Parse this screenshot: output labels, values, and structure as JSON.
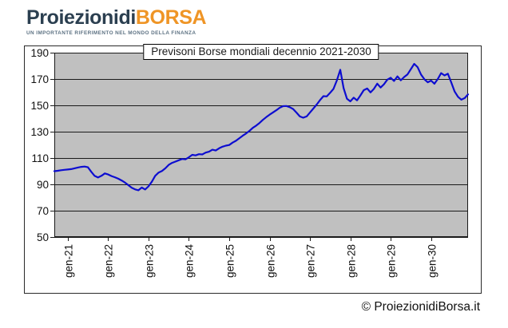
{
  "logo": {
    "brand_primary": "Proiezionidi",
    "brand_accent": "BORSA",
    "tagline": "UN IMPORTANTE RIFERIMENTO NEL MONDO DELLA FINANZA",
    "colors": {
      "primary": "#2b3f50",
      "accent": "#ef9526",
      "tagline": "#5d7283"
    }
  },
  "chart_data": {
    "type": "line",
    "title": "Previsoni Borse mondiali decennio 2021-2030",
    "xlabel": "",
    "ylabel": "",
    "ylim": [
      50,
      190
    ],
    "y_ticks": [
      190,
      170,
      150,
      130,
      110,
      90,
      70,
      50
    ],
    "x_tick_labels": [
      "gen-21",
      "gen-22",
      "gen-23",
      "gen-24",
      "gen-25",
      "gen-26",
      "gen-27",
      "gen-28",
      "gen-29",
      "gen-30"
    ],
    "x_tick_point_indices": [
      4,
      16,
      28,
      40,
      52,
      64,
      76,
      88,
      100,
      112
    ],
    "grid": true,
    "legend": "none",
    "colors": {
      "plot_background": "#c0c0c0",
      "line": "#0d0dd0",
      "grid": "#1a1a1a",
      "frame": "#2a2a2a"
    },
    "series": [
      {
        "values": [
          100,
          100.3,
          100.7,
          101,
          101.3,
          101.6,
          102.2,
          102.8,
          103.3,
          103.5,
          103,
          99.5,
          96.4,
          95.2,
          96.5,
          98.3,
          97.5,
          96.3,
          95.4,
          94.3,
          93,
          91.4,
          89.4,
          87.4,
          86.2,
          85.5,
          87.6,
          86.1,
          88.5,
          92,
          96.5,
          99,
          100.2,
          102.2,
          104.8,
          106.3,
          107.3,
          108.3,
          109.3,
          109,
          110.6,
          112.4,
          112,
          112.9,
          112.7,
          114.1,
          114.8,
          116.3,
          115.7,
          117.4,
          118.6,
          119.4,
          119.9,
          121.7,
          123.1,
          125,
          126.9,
          128.6,
          130.6,
          132.9,
          134.6,
          136.6,
          139,
          141,
          142.9,
          144.6,
          146.3,
          148.2,
          149.4,
          149.5,
          148.6,
          147.2,
          144.5,
          141.6,
          140.6,
          141.6,
          144.6,
          147.6,
          150.6,
          154,
          157,
          156.8,
          159.5,
          162.5,
          169,
          177,
          163,
          155,
          153,
          155.8,
          153.8,
          157.5,
          161.5,
          162.8,
          159.8,
          162.5,
          166.5,
          163.5,
          166,
          169.5,
          171,
          168.5,
          172,
          169,
          171.5,
          173.5,
          177.5,
          181.5,
          179,
          173.5,
          169.8,
          167.5,
          168.8,
          166.4,
          170,
          174.5,
          172.7,
          174,
          167.5,
          160.5,
          156.5,
          154.3,
          155.5,
          158.3
        ]
      }
    ]
  },
  "footer": {
    "copyright": "© ProiezionidiBorsa.it"
  }
}
